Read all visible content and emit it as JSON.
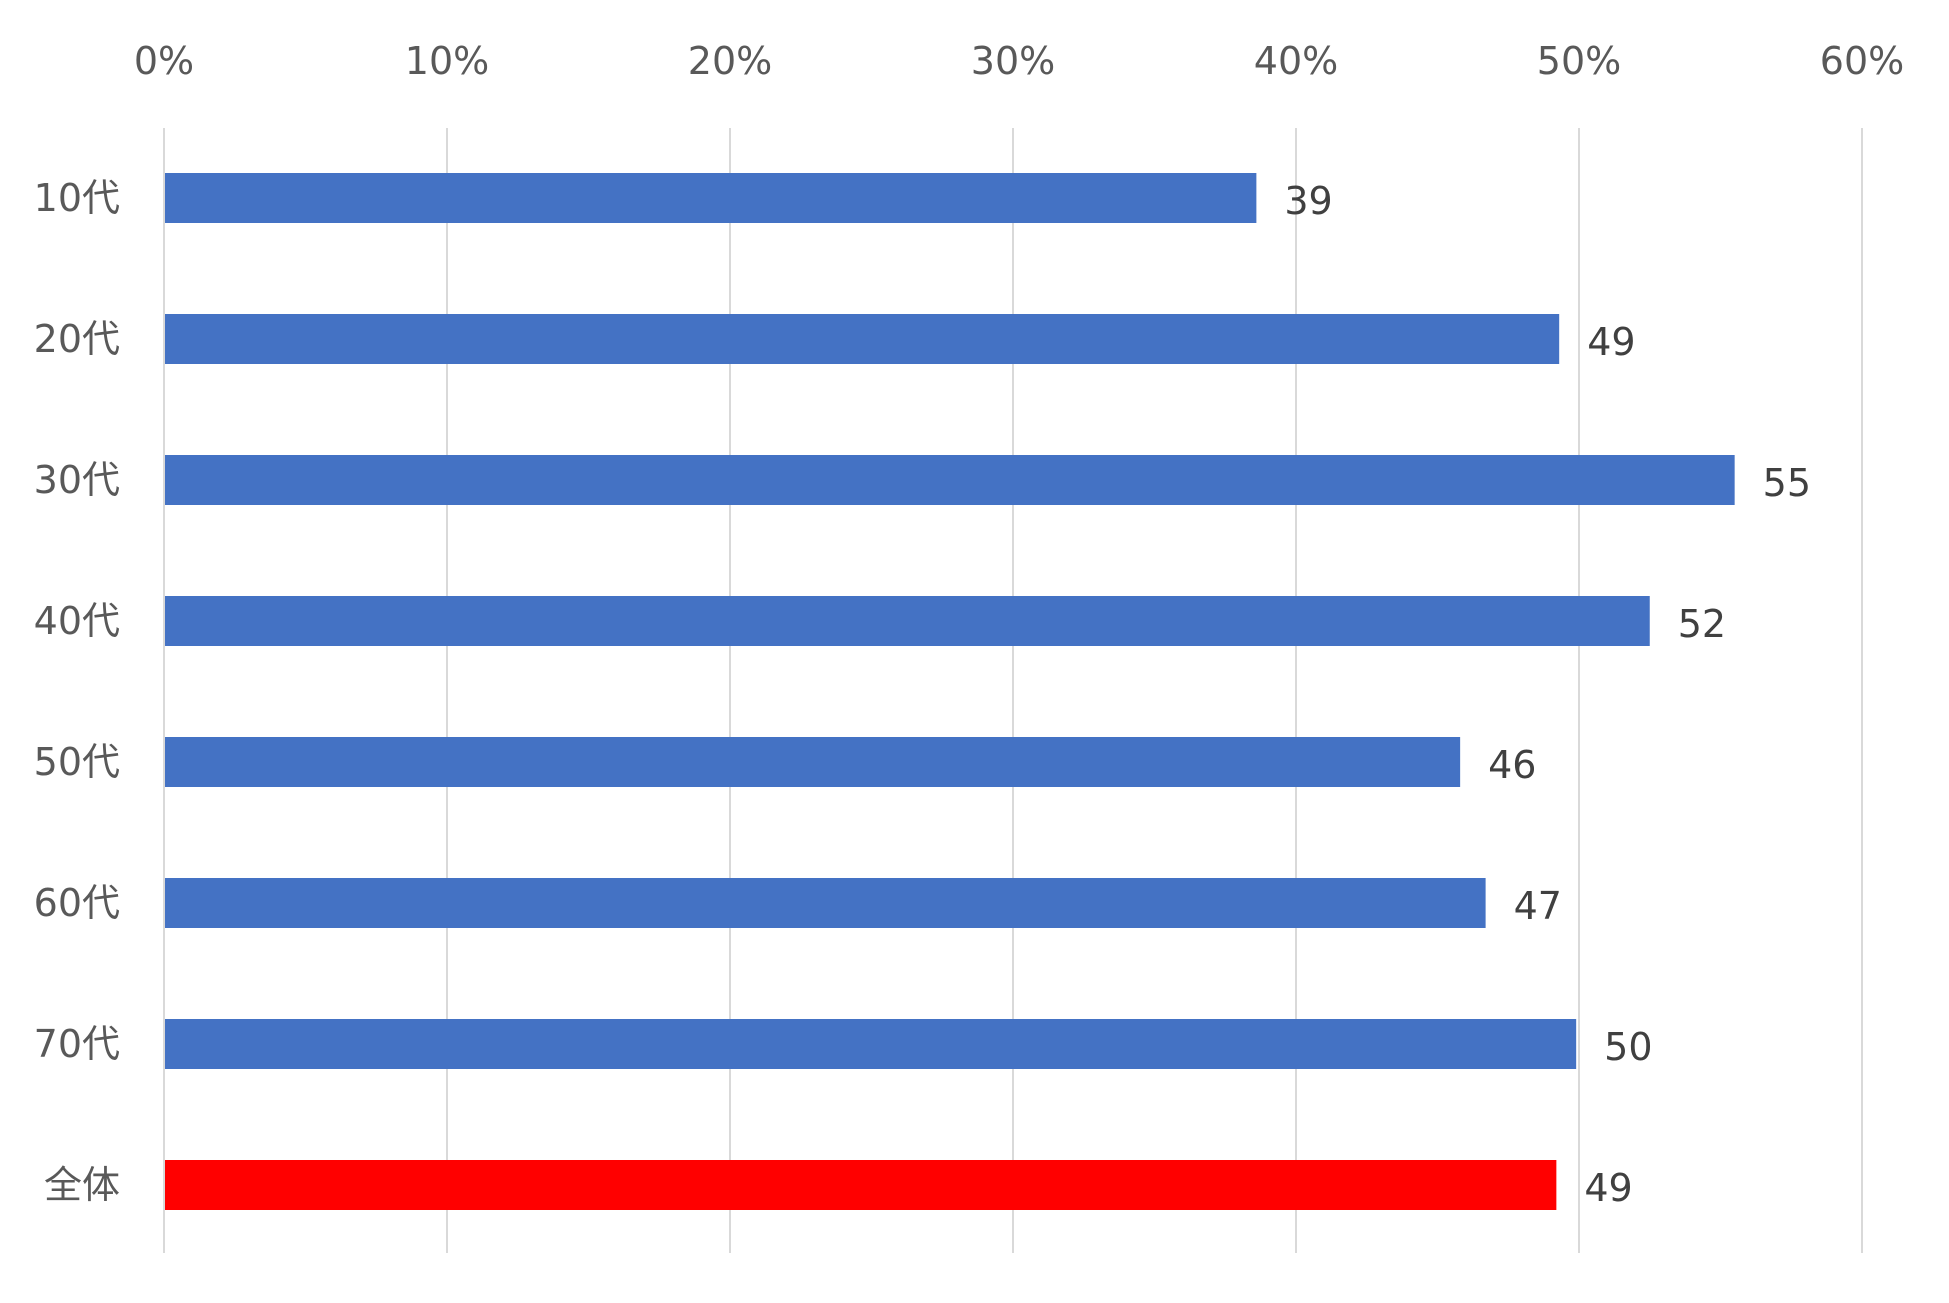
{
  "chart_data": {
    "type": "bar",
    "orientation": "horizontal",
    "categories": [
      "10代",
      "20代",
      "30代",
      "40代",
      "50代",
      "60代",
      "70代",
      "全体"
    ],
    "values": [
      38.6,
      49.3,
      55.5,
      52.5,
      45.8,
      46.7,
      49.9,
      49.2
    ],
    "data_labels": [
      "39",
      "49",
      "55",
      "52",
      "46",
      "47",
      "50",
      "49"
    ],
    "bar_colors": [
      "#4472C4",
      "#4472C4",
      "#4472C4",
      "#4472C4",
      "#4472C4",
      "#4472C4",
      "#4472C4",
      "#FF0000"
    ],
    "x_axis": {
      "position": "top",
      "range": [
        0,
        60
      ],
      "ticks": [
        0,
        10,
        20,
        30,
        40,
        50,
        60
      ],
      "tick_labels": [
        "0%",
        "10%",
        "20%",
        "30%",
        "40%",
        "50%",
        "60%"
      ]
    },
    "grid": true,
    "legend": "none",
    "colors": {
      "series": "#4472C4",
      "highlight": "#FF0000",
      "grid": "#D9D9D9",
      "text": "#595959",
      "label": "#404040"
    },
    "title": "",
    "xlabel": "",
    "ylabel": ""
  }
}
